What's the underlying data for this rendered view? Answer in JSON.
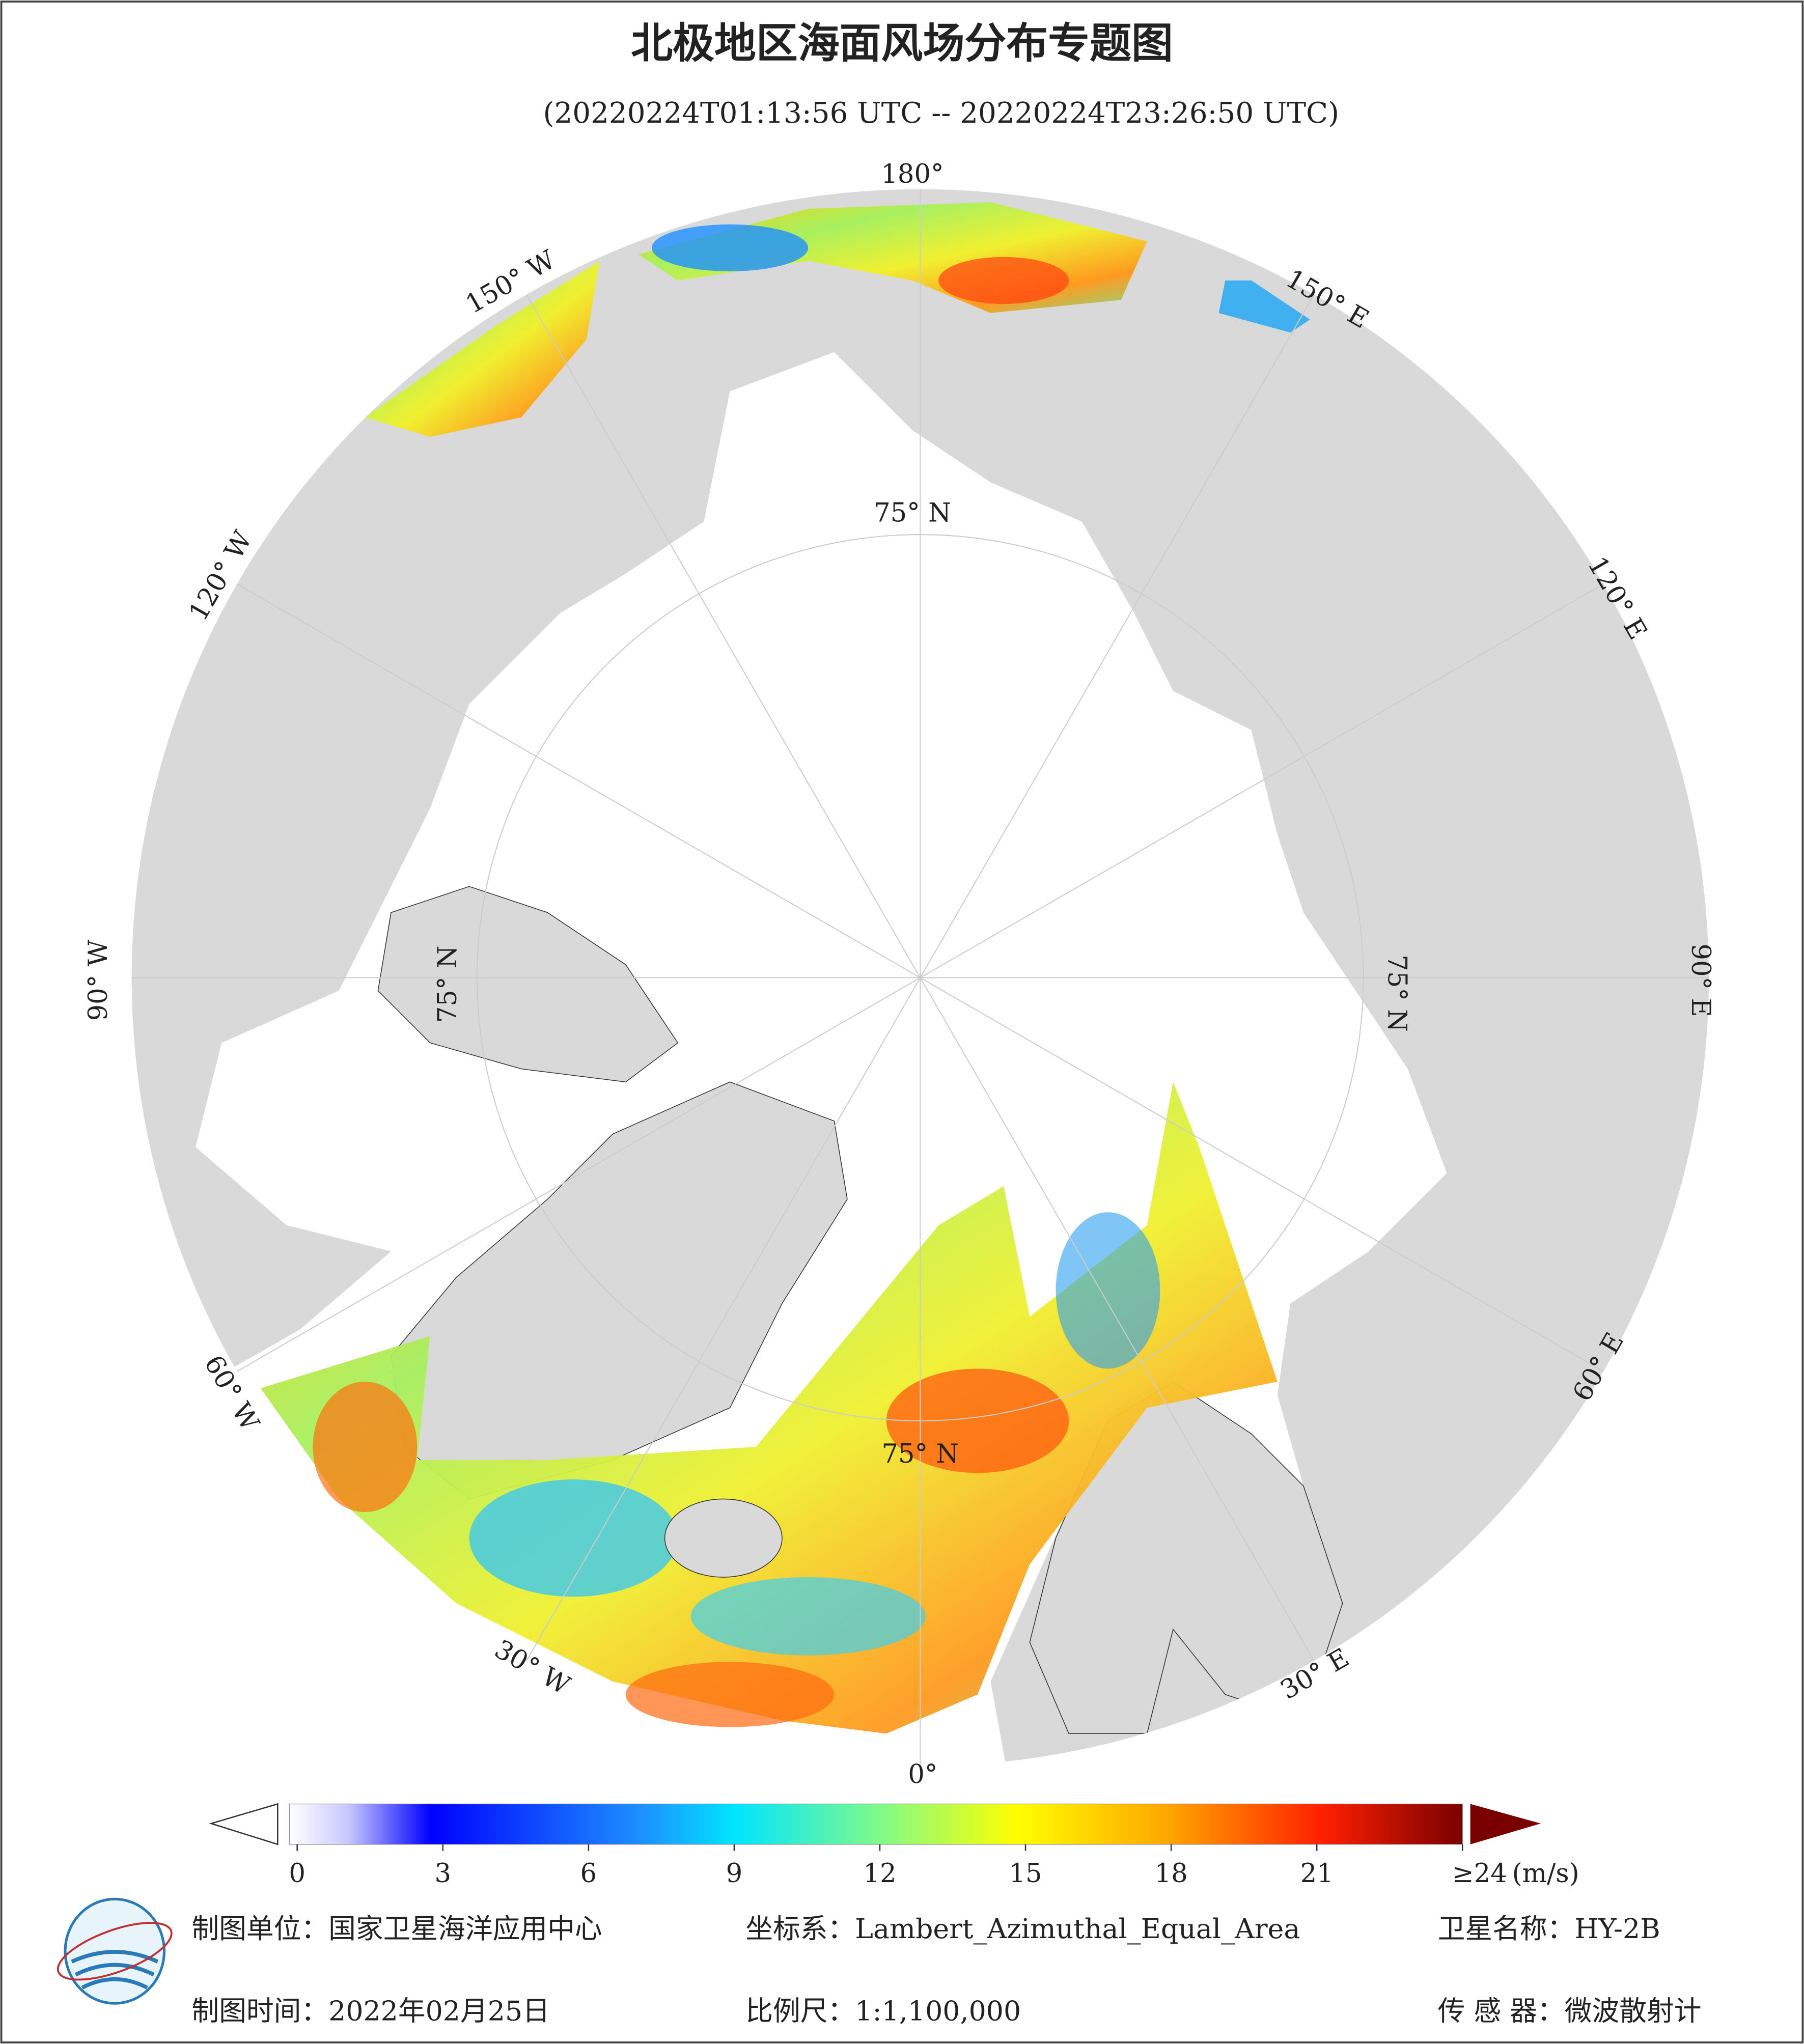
{
  "header": {
    "title": "北极地区海面风场分布专题图",
    "subtitle": "(20220224T01:13:56 UTC -- 20220224T23:26:50 UTC)"
  },
  "map": {
    "lon_labels": [
      "180°",
      "150° W",
      "120° W",
      "90° W",
      "60° W",
      "30° W",
      "0°",
      "30° E",
      "60° E",
      "90° E",
      "120° E",
      "150° E"
    ],
    "lat_labels": [
      "75° N",
      "75° N",
      "75° N",
      "75° N"
    ]
  },
  "colorbar": {
    "lim": [
      0,
      24
    ],
    "ticks": [
      0,
      3,
      6,
      9,
      12,
      15,
      18,
      21,
      {
        "value": 24,
        "label": "≥24"
      }
    ],
    "unit": "(m/s)"
  },
  "footer": {
    "unit": "制图单位：国家卫星海洋应用中心",
    "crs": "坐标系：Lambert_Azimuthal_Equal_Area",
    "satellite": "卫星名称：HY-2B",
    "date": "制图时间：2022年02月25日",
    "scale": "比例尺：1:1,100,000",
    "sensor": "传 感 器：微波散射计"
  }
}
